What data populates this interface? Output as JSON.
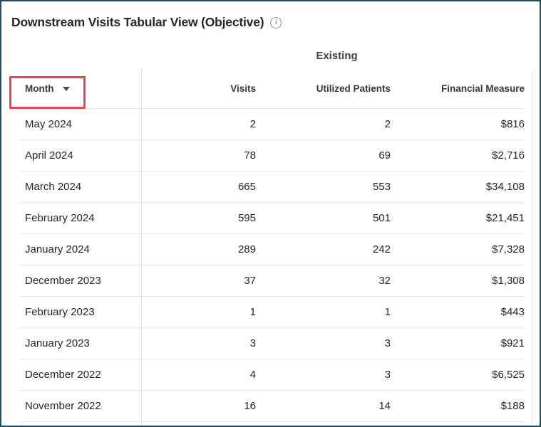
{
  "page": {
    "title": "Downstream Visits Tabular View (Objective)",
    "info_icon_glyph": "i"
  },
  "table": {
    "group_header": "Existing",
    "columns": {
      "month": "Month",
      "visits": "Visits",
      "utilized": "Utilized Patients",
      "financial": "Financial Measure"
    },
    "rows": [
      {
        "month": "May 2024",
        "visits": "2",
        "utilized": "2",
        "financial": "$816"
      },
      {
        "month": "April 2024",
        "visits": "78",
        "utilized": "69",
        "financial": "$2,716"
      },
      {
        "month": "March 2024",
        "visits": "665",
        "utilized": "553",
        "financial": "$34,108"
      },
      {
        "month": "February 2024",
        "visits": "595",
        "utilized": "501",
        "financial": "$21,451"
      },
      {
        "month": "January 2024",
        "visits": "289",
        "utilized": "242",
        "financial": "$7,328"
      },
      {
        "month": "December 2023",
        "visits": "37",
        "utilized": "32",
        "financial": "$1,308"
      },
      {
        "month": "February 2023",
        "visits": "1",
        "utilized": "1",
        "financial": "$443"
      },
      {
        "month": "January 2023",
        "visits": "3",
        "utilized": "3",
        "financial": "$921"
      },
      {
        "month": "December 2022",
        "visits": "4",
        "utilized": "3",
        "financial": "$6,525"
      },
      {
        "month": "November 2022",
        "visits": "16",
        "utilized": "14",
        "financial": "$188"
      }
    ]
  },
  "annotations": {
    "month_header_highlight_color": "#f4424e"
  },
  "colors": {
    "frame_border": "#1f4e5c",
    "title_text": "#24292e",
    "header_text": "#33383e",
    "row_text": "#23272b",
    "separator": "#e7e8ea"
  }
}
